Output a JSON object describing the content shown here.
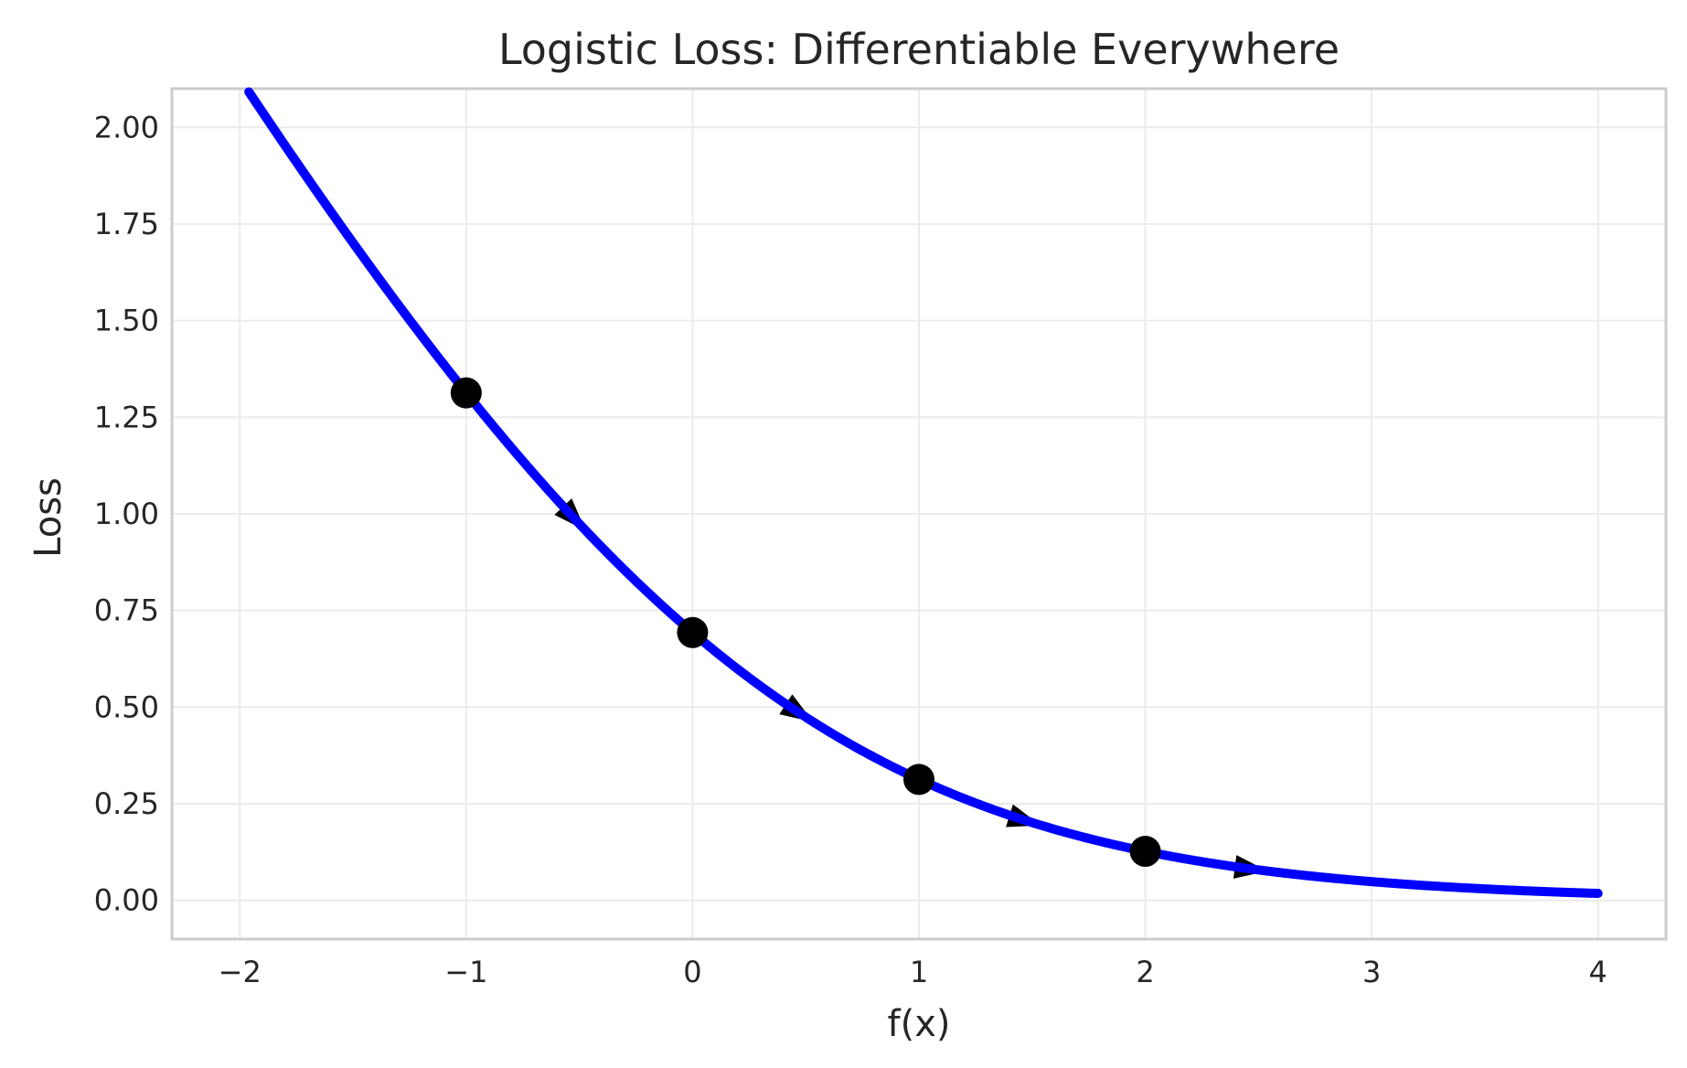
{
  "chart_data": {
    "type": "line",
    "title": "Logistic Loss: Differentiable Everywhere",
    "xlabel": "f(x)",
    "ylabel": "Loss",
    "xlim": [
      -2.3,
      4.3
    ],
    "ylim": [
      -0.1,
      2.1
    ],
    "x_ticks": [
      -2,
      -1,
      0,
      1,
      2,
      3,
      4
    ],
    "x_tick_labels": [
      "−2",
      "−1",
      "0",
      "1",
      "2",
      "3",
      "4"
    ],
    "y_ticks": [
      0,
      0.25,
      0.5,
      0.75,
      1.0,
      1.25,
      1.5,
      1.75,
      2.0
    ],
    "y_tick_labels": [
      "0.00",
      "0.25",
      "0.50",
      "0.75",
      "1.00",
      "1.25",
      "1.50",
      "1.75",
      "2.00"
    ],
    "grid": true,
    "series": [
      {
        "function": "log(1 + exp(-x))",
        "x_range": [
          -2,
          4
        ],
        "color": "#0000ff"
      }
    ],
    "points": {
      "x": [
        -1,
        0,
        1,
        2
      ],
      "y": [
        1.313,
        0.693,
        0.313,
        0.127
      ],
      "color": "#000000"
    },
    "gradient_arrows": [
      {
        "x": -0.5,
        "y": 0.974,
        "dx": 0.1,
        "dy": -0.0622
      },
      {
        "x": 0.5,
        "y": 0.474,
        "dx": 0.1,
        "dy": -0.0378
      },
      {
        "x": 1.5,
        "y": 0.201,
        "dx": 0.1,
        "dy": -0.0182
      },
      {
        "x": 2.5,
        "y": 0.079,
        "dx": 0.1,
        "dy": -0.0076
      }
    ]
  }
}
